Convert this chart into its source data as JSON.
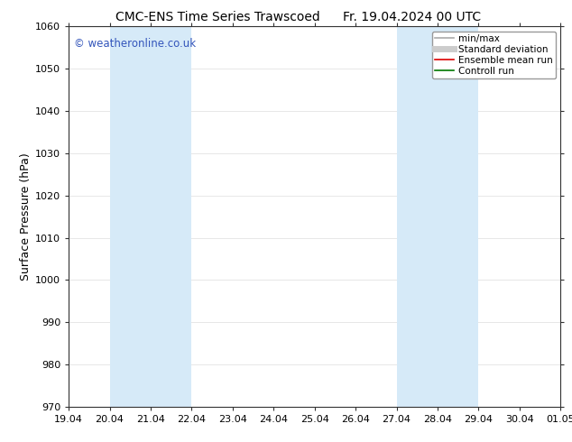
{
  "title_left": "CMC-ENS Time Series Trawscoed",
  "title_right": "Fr. 19.04.2024 00 UTC",
  "ylabel": "Surface Pressure (hPa)",
  "ylim": [
    970,
    1060
  ],
  "yticks": [
    970,
    980,
    990,
    1000,
    1010,
    1020,
    1030,
    1040,
    1050,
    1060
  ],
  "xlabels": [
    "19.04",
    "20.04",
    "21.04",
    "22.04",
    "23.04",
    "24.04",
    "25.04",
    "26.04",
    "27.04",
    "28.04",
    "29.04",
    "30.04",
    "01.05"
  ],
  "xvalues": [
    0,
    1,
    2,
    3,
    4,
    5,
    6,
    7,
    8,
    9,
    10,
    11,
    12
  ],
  "shaded_bands": [
    {
      "xmin": 1,
      "xmax": 2,
      "color": "#d6eaf8"
    },
    {
      "xmin": 2,
      "xmax": 3,
      "color": "#d6eaf8"
    },
    {
      "xmin": 8,
      "xmax": 9,
      "color": "#d6eaf8"
    },
    {
      "xmin": 9,
      "xmax": 10,
      "color": "#d6eaf8"
    }
  ],
  "watermark": "© weatheronline.co.uk",
  "watermark_color": "#3355bb",
  "legend_entries": [
    {
      "label": "min/max",
      "color": "#aaaaaa",
      "lw": 1.2,
      "style": "-"
    },
    {
      "label": "Standard deviation",
      "color": "#cccccc",
      "lw": 5,
      "style": "-"
    },
    {
      "label": "Ensemble mean run",
      "color": "#dd0000",
      "lw": 1.2,
      "style": "-"
    },
    {
      "label": "Controll run",
      "color": "#007700",
      "lw": 1.2,
      "style": "-"
    }
  ],
  "bg_color": "#ffffff",
  "grid_color": "#dddddd",
  "font_size": 9,
  "title_font_size": 10,
  "tick_font_size": 8
}
